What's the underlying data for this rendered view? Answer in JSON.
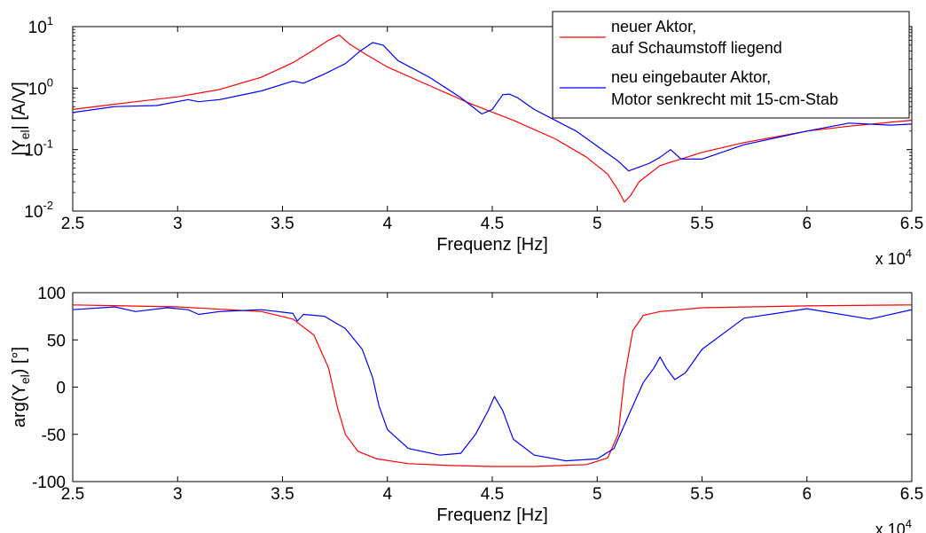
{
  "xscale_label": "x 10",
  "xscale_exp": "4",
  "legend": {
    "entries": [
      {
        "line1": "neuer Aktor,",
        "line2": "auf Schaumstoff liegend"
      },
      {
        "line1": "neu eingebauter Aktor,",
        "line2": "Motor senkrecht mit 15-cm-Stab"
      }
    ]
  },
  "chart_data": [
    {
      "type": "line",
      "xlabel": "Frequenz [Hz]",
      "ylabel_main": "|Y",
      "ylabel_sub": "el",
      "ylabel_end": "| [A/V]",
      "xlim": [
        2.5,
        6.5
      ],
      "ylim": [
        0.01,
        10
      ],
      "yscale": "log",
      "xticks": [
        "2.5",
        "3",
        "3.5",
        "4",
        "4.5",
        "5",
        "5.5",
        "6",
        "6.5"
      ],
      "yticks": [
        {
          "value": 0.01,
          "base": "10",
          "exp": "-2"
        },
        {
          "value": 0.1,
          "base": "10",
          "exp": "-1"
        },
        {
          "value": 1,
          "base": "10",
          "exp": "0"
        },
        {
          "value": 10,
          "base": "10",
          "exp": "1"
        }
      ],
      "series": [
        {
          "name": "neuer Aktor, auf Schaumstoff liegend",
          "color": "#ff0000",
          "x": [
            2.5,
            2.8,
            3.0,
            3.2,
            3.4,
            3.55,
            3.65,
            3.72,
            3.77,
            3.82,
            3.9,
            4.0,
            4.2,
            4.4,
            4.6,
            4.8,
            4.95,
            5.05,
            5.1,
            5.13,
            5.16,
            5.2,
            5.3,
            5.5,
            5.7,
            6.0,
            6.2,
            6.5
          ],
          "y": [
            0.45,
            0.6,
            0.72,
            0.95,
            1.5,
            2.6,
            4.2,
            6.0,
            7.3,
            5.2,
            3.5,
            2.2,
            1.1,
            0.55,
            0.3,
            0.15,
            0.075,
            0.04,
            0.022,
            0.014,
            0.018,
            0.03,
            0.055,
            0.09,
            0.13,
            0.2,
            0.24,
            0.3
          ]
        },
        {
          "name": "neu eingebauter Aktor, Motor senkrecht mit 15-cm-Stab",
          "color": "#0000ff",
          "x": [
            2.5,
            2.7,
            2.9,
            3.05,
            3.1,
            3.2,
            3.4,
            3.55,
            3.6,
            3.7,
            3.8,
            3.87,
            3.93,
            3.98,
            4.05,
            4.2,
            4.35,
            4.45,
            4.5,
            4.55,
            4.58,
            4.62,
            4.7,
            4.9,
            5.1,
            5.15,
            5.2,
            5.25,
            5.3,
            5.35,
            5.4,
            5.5,
            5.7,
            6.0,
            6.2,
            6.4,
            6.5
          ],
          "y": [
            0.4,
            0.5,
            0.52,
            0.65,
            0.6,
            0.65,
            0.9,
            1.3,
            1.2,
            1.7,
            2.5,
            4.0,
            5.5,
            5.0,
            2.8,
            1.5,
            0.7,
            0.38,
            0.45,
            0.78,
            0.8,
            0.7,
            0.45,
            0.2,
            0.065,
            0.045,
            0.052,
            0.06,
            0.075,
            0.1,
            0.07,
            0.07,
            0.12,
            0.2,
            0.27,
            0.25,
            0.26
          ]
        }
      ]
    },
    {
      "type": "line",
      "xlabel": "Frequenz [Hz]",
      "ylabel_main": "arg(Y",
      "ylabel_sub": "el",
      "ylabel_end": ") [°]",
      "xlim": [
        2.5,
        6.5
      ],
      "ylim": [
        -100,
        100
      ],
      "yscale": "linear",
      "xticks": [
        "2.5",
        "3",
        "3.5",
        "4",
        "4.5",
        "5",
        "5.5",
        "6",
        "6.5"
      ],
      "yticks": [
        {
          "value": -100,
          "label": "-100"
        },
        {
          "value": -50,
          "label": "-50"
        },
        {
          "value": 0,
          "label": "0"
        },
        {
          "value": 50,
          "label": "50"
        },
        {
          "value": 100,
          "label": "100"
        }
      ],
      "series": [
        {
          "name": "neuer Aktor, auf Schaumstoff liegend",
          "color": "#ff0000",
          "x": [
            2.5,
            3.0,
            3.4,
            3.55,
            3.65,
            3.72,
            3.76,
            3.8,
            3.86,
            3.95,
            4.1,
            4.3,
            4.5,
            4.7,
            4.95,
            5.05,
            5.1,
            5.13,
            5.17,
            5.22,
            5.3,
            5.5,
            6.0,
            6.5
          ],
          "y": [
            87,
            85,
            80,
            72,
            55,
            20,
            -20,
            -50,
            -68,
            -76,
            -81,
            -83,
            -84,
            -84,
            -82,
            -75,
            -50,
            10,
            60,
            76,
            80,
            84,
            86,
            87
          ],
          "y_note": ""
        },
        {
          "name": "neu eingebauter Aktor, Motor senkrecht mit 15-cm-Stab",
          "color": "#0000ff",
          "x": [
            2.5,
            2.7,
            2.8,
            2.95,
            3.05,
            3.1,
            3.2,
            3.4,
            3.55,
            3.57,
            3.6,
            3.7,
            3.8,
            3.88,
            3.93,
            3.96,
            4.0,
            4.1,
            4.25,
            4.35,
            4.42,
            4.48,
            4.51,
            4.55,
            4.6,
            4.7,
            4.85,
            5.0,
            5.08,
            5.15,
            5.22,
            5.27,
            5.3,
            5.33,
            5.37,
            5.42,
            5.5,
            5.7,
            6.0,
            6.3,
            6.5
          ],
          "y": [
            82,
            85,
            80,
            84,
            82,
            77,
            80,
            82,
            78,
            70,
            77,
            75,
            62,
            40,
            10,
            -20,
            -45,
            -65,
            -72,
            -70,
            -50,
            -25,
            -10,
            -25,
            -55,
            -72,
            -78,
            -76,
            -65,
            -30,
            5,
            20,
            32,
            20,
            8,
            15,
            40,
            73,
            83,
            72,
            82
          ]
        }
      ]
    }
  ]
}
